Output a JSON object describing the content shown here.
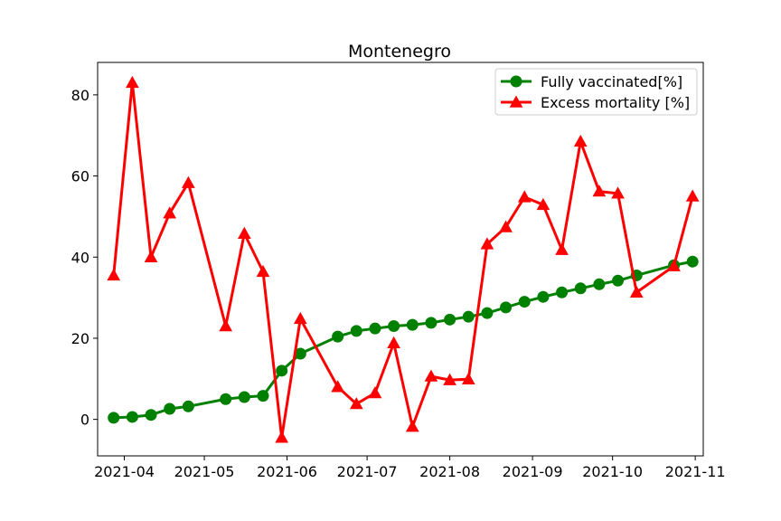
{
  "chart_data": {
    "type": "line",
    "title": "Montenegro",
    "xlabel": "",
    "ylabel": "",
    "x_axis_type": "date",
    "xlim": [
      "2021-03-22",
      "2021-11-04"
    ],
    "ylim": [
      -9,
      88
    ],
    "x_ticks": [
      "2021-04-01",
      "2021-05-01",
      "2021-06-01",
      "2021-07-01",
      "2021-08-01",
      "2021-09-01",
      "2021-10-01",
      "2021-11-01"
    ],
    "x_tick_labels": [
      "2021-04",
      "2021-05",
      "2021-06",
      "2021-07",
      "2021-08",
      "2021-09",
      "2021-10",
      "2021-11"
    ],
    "y_ticks": [
      0,
      20,
      40,
      60,
      80
    ],
    "y_tick_labels": [
      "0",
      "20",
      "40",
      "60",
      "80"
    ],
    "grid": false,
    "legend_position": "top-right",
    "series": [
      {
        "name": "Fully vaccinated[%]",
        "color": "#008000",
        "marker": "circle",
        "x": [
          "2021-03-28",
          "2021-04-04",
          "2021-04-11",
          "2021-04-18",
          "2021-04-25",
          "2021-05-09",
          "2021-05-16",
          "2021-05-23",
          "2021-05-30",
          "2021-06-06",
          "2021-06-20",
          "2021-06-27",
          "2021-07-04",
          "2021-07-11",
          "2021-07-18",
          "2021-07-25",
          "2021-08-01",
          "2021-08-08",
          "2021-08-15",
          "2021-08-22",
          "2021-08-29",
          "2021-09-05",
          "2021-09-12",
          "2021-09-19",
          "2021-09-26",
          "2021-10-03",
          "2021-10-10",
          "2021-10-24",
          "2021-10-31"
        ],
        "values": [
          0.4,
          0.6,
          1.1,
          2.6,
          3.2,
          5.0,
          5.5,
          5.8,
          12.0,
          16.2,
          20.4,
          21.8,
          22.4,
          23.0,
          23.3,
          23.8,
          24.6,
          25.3,
          26.2,
          27.6,
          29.0,
          30.2,
          31.3,
          32.3,
          33.3,
          34.2,
          35.5,
          38.0,
          38.9
        ]
      },
      {
        "name": "Excess mortality [%]",
        "color": "#ff0000",
        "marker": "triangle",
        "x": [
          "2021-03-28",
          "2021-04-04",
          "2021-04-11",
          "2021-04-18",
          "2021-04-25",
          "2021-05-09",
          "2021-05-16",
          "2021-05-23",
          "2021-05-30",
          "2021-06-06",
          "2021-06-20",
          "2021-06-27",
          "2021-07-04",
          "2021-07-11",
          "2021-07-18",
          "2021-07-25",
          "2021-08-01",
          "2021-08-08",
          "2021-08-15",
          "2021-08-22",
          "2021-08-29",
          "2021-09-05",
          "2021-09-12",
          "2021-09-19",
          "2021-09-26",
          "2021-10-03",
          "2021-10-10",
          "2021-10-24",
          "2021-10-31"
        ],
        "values": [
          35.5,
          83.0,
          40.0,
          50.8,
          58.3,
          23.0,
          45.8,
          36.4,
          -4.5,
          24.8,
          8.0,
          3.8,
          6.5,
          18.8,
          -1.8,
          10.6,
          9.7,
          9.9,
          43.2,
          47.4,
          54.8,
          52.9,
          41.8,
          68.5,
          56.2,
          55.7,
          31.3,
          37.8,
          55.0
        ]
      }
    ]
  }
}
